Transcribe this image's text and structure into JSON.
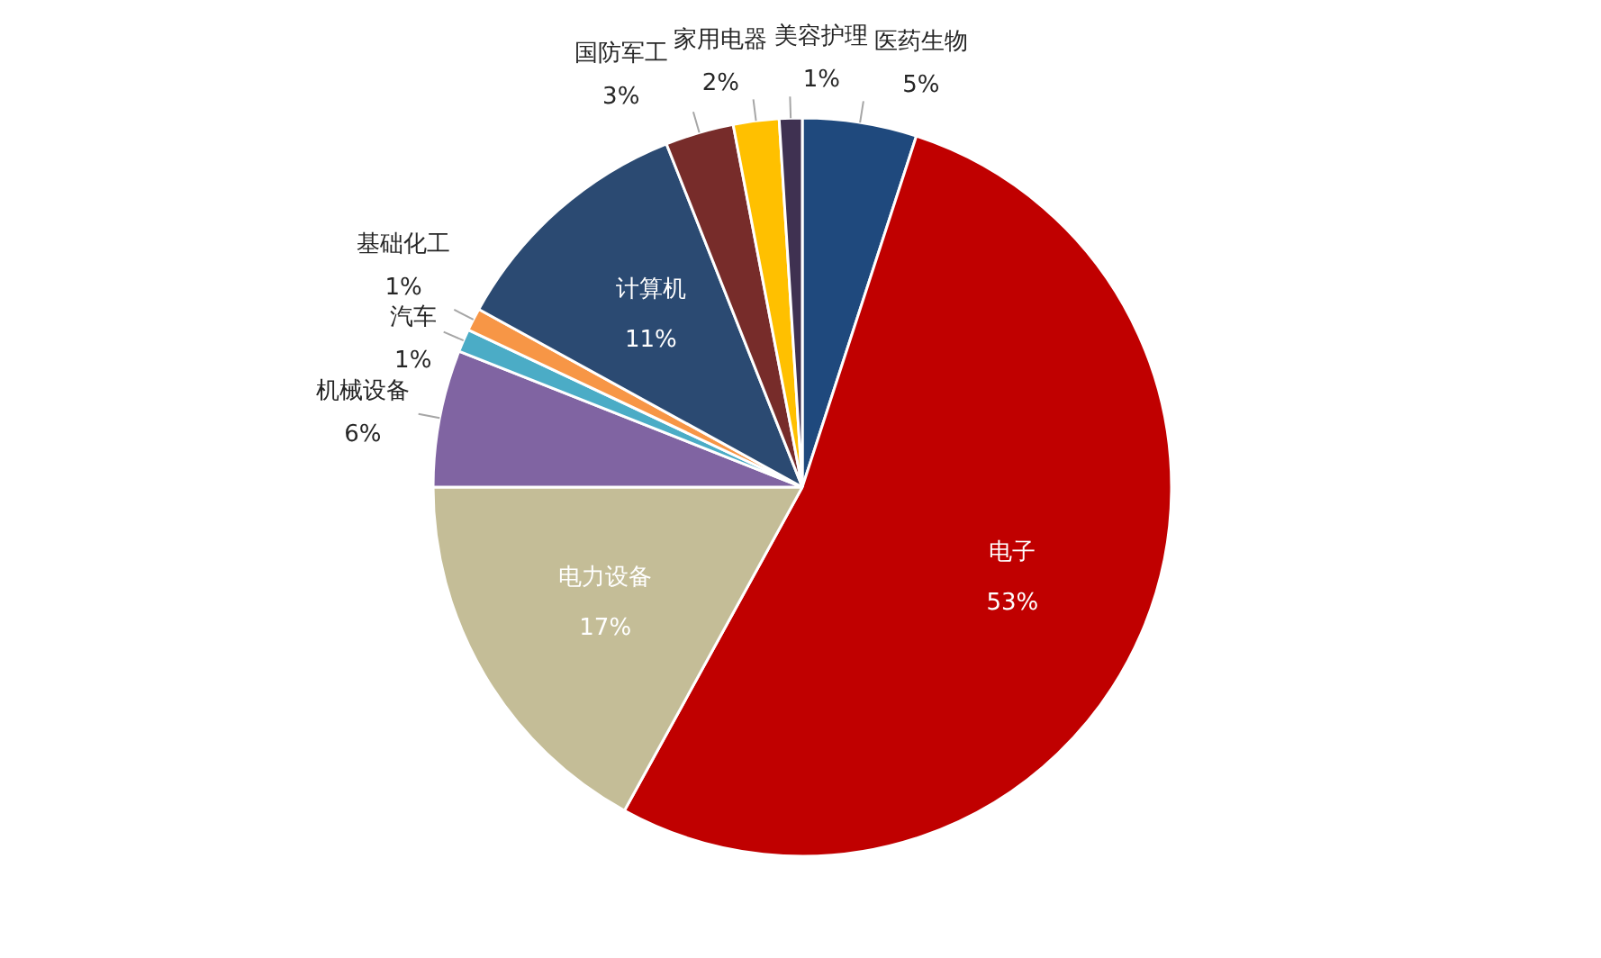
{
  "chart_data": {
    "type": "pie",
    "categories": [
      "医药生物",
      "电子",
      "电力设备",
      "机械设备",
      "汽车",
      "基础化工",
      "计算机",
      "国防军工",
      "家用电器",
      "美容护理"
    ],
    "values": [
      5,
      53,
      17,
      6,
      1,
      1,
      11,
      3,
      2,
      1
    ],
    "value_labels": [
      "5%",
      "53%",
      "17%",
      "6%",
      "1%",
      "1%",
      "11%",
      "3%",
      "2%",
      "1%"
    ],
    "colors": [
      "#1f497d",
      "#c00000",
      "#c4bd97",
      "#8064a2",
      "#4bacc6",
      "#f79646",
      "#2b4a72",
      "#772c2a",
      "#ffc000",
      "#3f3151"
    ]
  }
}
